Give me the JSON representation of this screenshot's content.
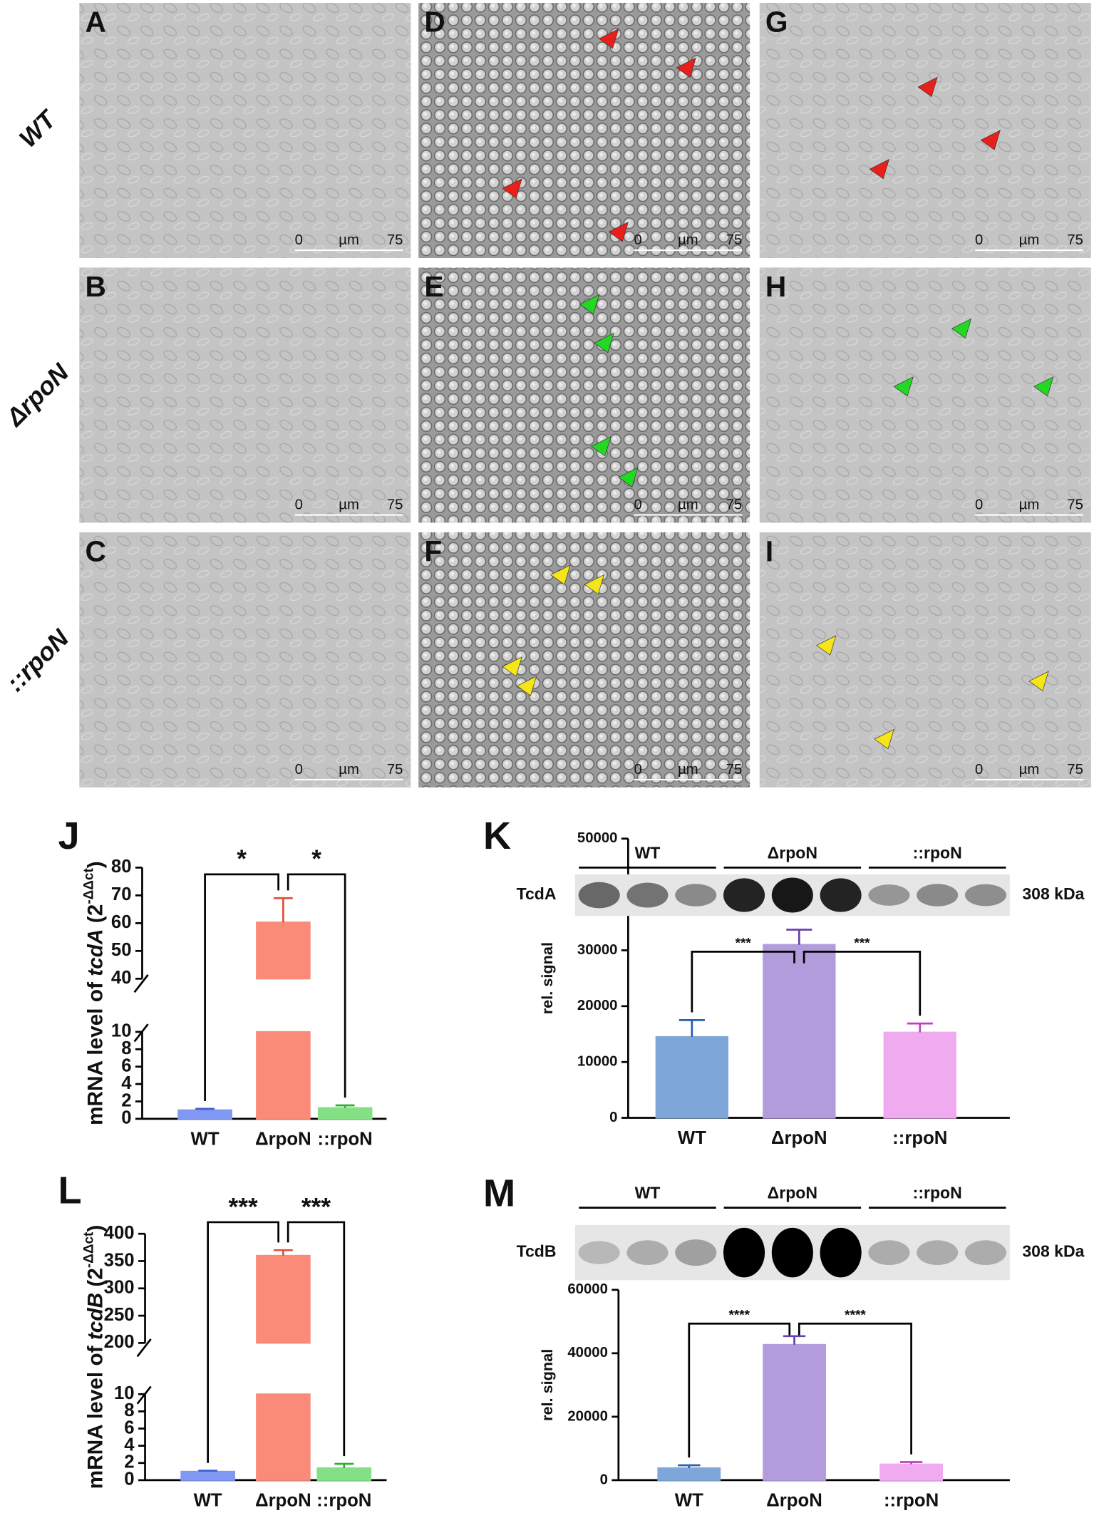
{
  "micrographs": {
    "panels": [
      [
        "A",
        "D",
        "G"
      ],
      [
        "B",
        "E",
        "H"
      ],
      [
        "C",
        "F",
        "I"
      ]
    ],
    "row_labels": [
      "WT",
      "ΔrpoN",
      "::rpoN"
    ],
    "scale_bar": [
      "0",
      "µm",
      "75"
    ]
  },
  "chart_data": [
    {
      "type": "bar",
      "panel": "J",
      "ylabel": [
        "mRNA level of ",
        "tcdA",
        " (2",
        "-ΔΔct",
        ")"
      ],
      "categories": [
        "WT",
        "ΔrpoN",
        "::rpoN"
      ],
      "values": [
        1.0,
        60.3,
        1.25
      ],
      "errors": [
        0.15,
        8.7,
        0.3
      ],
      "colors": [
        "#8098f2",
        "#fa8b78",
        "#84e084"
      ],
      "y_segments": [
        {
          "ylim": [
            0,
            10
          ],
          "yticks": [
            0,
            2,
            4,
            6,
            8,
            10
          ]
        },
        {
          "ylim": [
            40,
            80
          ],
          "yticks": [
            40,
            50,
            60,
            70,
            80
          ]
        }
      ],
      "annotations": [
        "*",
        "*"
      ]
    },
    {
      "type": "bar",
      "panel": "K",
      "ylabel": [
        "rel. signal"
      ],
      "blot": {
        "label": "TcdA",
        "size": "308 kDa",
        "groups": [
          "WT",
          "ΔrpoN",
          "::rpoN"
        ]
      },
      "categories": [
        "WT",
        "ΔrpoN",
        "::rpoN"
      ],
      "values": [
        14500,
        31000,
        15300
      ],
      "errors": [
        3000,
        2700,
        1600
      ],
      "colors": [
        "#7fa6d8",
        "#b29cdc",
        "#f0aaf0"
      ],
      "y_segments": [
        {
          "ylim": [
            0,
            50000
          ],
          "yticks": [
            0,
            10000,
            20000,
            30000,
            40000,
            50000
          ]
        }
      ],
      "annotations": [
        "***",
        "***"
      ]
    },
    {
      "type": "bar",
      "panel": "L",
      "ylabel": [
        "mRNA level of ",
        "tcdB",
        " (2",
        "-ΔΔct",
        ")"
      ],
      "categories": [
        "WT",
        "ΔrpoN",
        "::rpoN"
      ],
      "values": [
        1.0,
        360,
        1.4
      ],
      "errors": [
        0.1,
        10,
        0.5
      ],
      "colors": [
        "#8098f2",
        "#fa8b78",
        "#84e084"
      ],
      "y_segments": [
        {
          "ylim": [
            0,
            10
          ],
          "yticks": [
            0,
            2,
            4,
            6,
            8,
            10
          ]
        },
        {
          "ylim": [
            200,
            400
          ],
          "yticks": [
            200,
            250,
            300,
            350,
            400
          ]
        }
      ],
      "annotations": [
        "***",
        "***"
      ]
    },
    {
      "type": "bar",
      "panel": "M",
      "ylabel": [
        "rel. signal"
      ],
      "blot": {
        "label": "TcdB",
        "size": "308 kDa",
        "groups": [
          "WT",
          "ΔrpoN",
          "::rpoN"
        ]
      },
      "categories": [
        "WT",
        "ΔrpoN",
        "::rpoN"
      ],
      "values": [
        3800,
        42700,
        5000
      ],
      "errors": [
        900,
        2700,
        700
      ],
      "colors": [
        "#7fa6d8",
        "#b29cdc",
        "#f0aaf0"
      ],
      "y_segments": [
        {
          "ylim": [
            0,
            60000
          ],
          "yticks": [
            0,
            20000,
            40000,
            60000
          ]
        }
      ],
      "annotations": [
        "****",
        "****"
      ]
    }
  ]
}
